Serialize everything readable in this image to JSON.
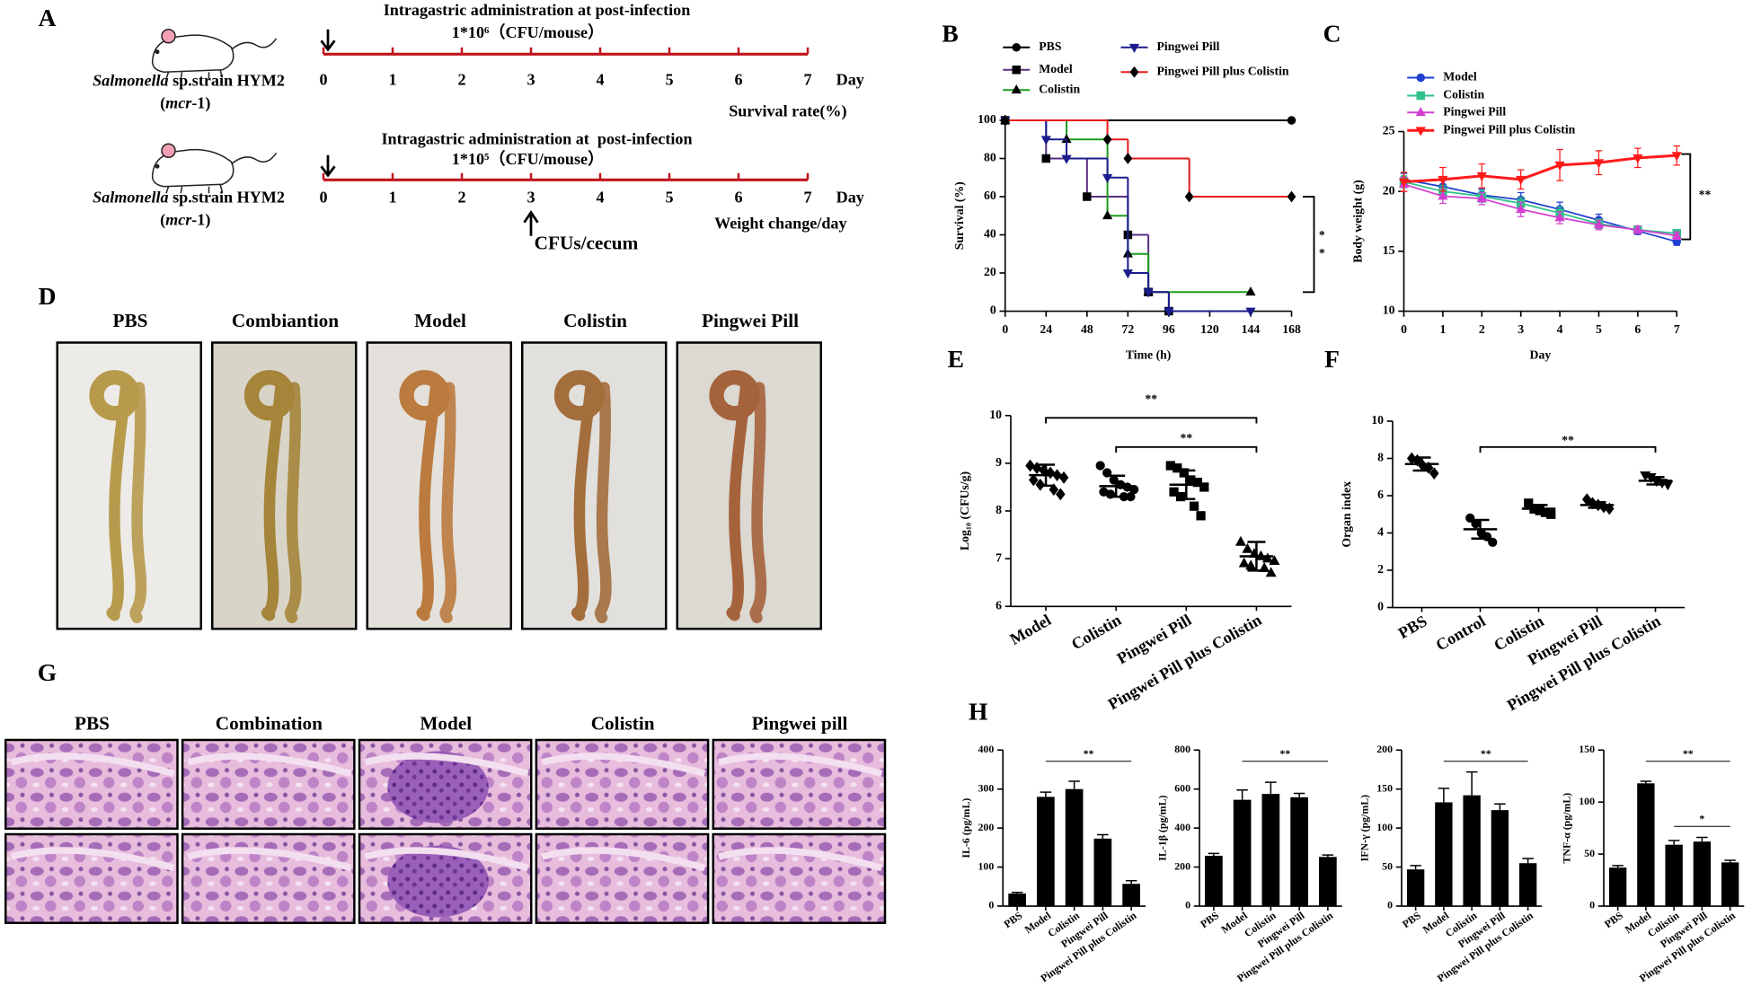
{
  "panel_letters": [
    "A",
    "B",
    "C",
    "D",
    "E",
    "F",
    "G",
    "H"
  ],
  "timelines": [
    {
      "title": "Intragastric administration at post-infection",
      "dose": "1*10⁶（CFU/mouse）",
      "days": [
        0,
        1,
        2,
        3,
        4,
        5,
        6,
        7
      ],
      "unit": "Day",
      "readout": "Survival rate(%)",
      "strain": [
        "Salmonella",
        " sp.strain HYM2"
      ],
      "gene": [
        "(",
        "mcr",
        "-1)"
      ]
    },
    {
      "title": "Intragastric administration at  post-infection",
      "dose": "1*10⁵（CFU/mouse）",
      "days": [
        0,
        1,
        2,
        3,
        4,
        5,
        6,
        7
      ],
      "unit": "Day",
      "readout": "Weight change/day",
      "strain": [
        "Salmonella",
        " sp.strain HYM2"
      ],
      "gene": [
        "(",
        "mcr",
        "-1)"
      ],
      "sample": "CFUs/cecum"
    }
  ],
  "photos": {
    "labels": [
      "PBS",
      "Combiantion",
      "Model",
      "Colistin",
      "Pingwei Pill"
    ]
  },
  "histology": {
    "labels": [
      "PBS",
      "Combination",
      "Model",
      "Colistin",
      "Pingwei pill"
    ]
  },
  "chart_data": [
    {
      "type": "line",
      "step": true,
      "xlabel": "Time (h)",
      "ylabel": "Survival (%)",
      "xlim": [
        0,
        168
      ],
      "xticks": [
        0,
        24,
        48,
        72,
        96,
        120,
        144,
        168
      ],
      "ylim": [
        0,
        100
      ],
      "yticks": [
        0,
        20,
        40,
        60,
        80,
        100
      ],
      "annotations": [
        "*",
        "*"
      ],
      "series": [
        {
          "name": "PBS",
          "color": "#000000",
          "marker": "circle",
          "marker_color": "#000000",
          "x": [
            0,
            168
          ],
          "values": [
            100,
            100
          ]
        },
        {
          "name": "Model",
          "color": "#5a2d82",
          "marker": "square",
          "marker_color": "#000000",
          "x": [
            0,
            24,
            48,
            72,
            84,
            96
          ],
          "values": [
            100,
            80,
            60,
            40,
            10,
            0
          ]
        },
        {
          "name": "Colistin",
          "color": "#1a9e1a",
          "marker": "triangle",
          "marker_color": "#000000",
          "x": [
            0,
            36,
            60,
            72,
            84,
            144
          ],
          "values": [
            100,
            90,
            50,
            30,
            10,
            10
          ]
        },
        {
          "name": "Pingwei Pill",
          "color": "#1c1c8e",
          "marker": "triangle-down",
          "marker_color": "#1c1c8e",
          "x": [
            0,
            24,
            36,
            60,
            72,
            84,
            96,
            144
          ],
          "values": [
            100,
            90,
            80,
            70,
            20,
            10,
            0,
            0
          ]
        },
        {
          "name": "Pingwei Pill plus Colistin",
          "color": "#e8191b",
          "marker": "diamond",
          "marker_color": "#000000",
          "x": [
            0,
            60,
            72,
            108,
            168
          ],
          "values": [
            100,
            90,
            80,
            60,
            60
          ]
        }
      ]
    },
    {
      "type": "line",
      "xlabel": "Day",
      "ylabel": "Body weight (g)",
      "xlim": [
        0,
        7
      ],
      "xticks": [
        0,
        1,
        2,
        3,
        4,
        5,
        6,
        7
      ],
      "ylim": [
        10,
        25
      ],
      "yticks": [
        10,
        15,
        20,
        25
      ],
      "annotations": [
        "**"
      ],
      "series": [
        {
          "name": "Model",
          "color": "#1f3fcf",
          "marker": "circle",
          "marker_color": "#1f3fcf",
          "x": [
            0,
            1,
            2,
            3,
            4,
            5,
            6,
            7
          ],
          "values": [
            21.0,
            20.4,
            19.7,
            19.3,
            18.5,
            17.6,
            16.7,
            15.8
          ],
          "errors": [
            0.5,
            0.5,
            0.5,
            0.6,
            0.6,
            0.5,
            0.3,
            0.3
          ]
        },
        {
          "name": "Colistin",
          "color": "#2ec28a",
          "marker": "square",
          "marker_color": "#2ec28a",
          "x": [
            0,
            1,
            2,
            3,
            4,
            5,
            6,
            7
          ],
          "values": [
            20.8,
            20.0,
            19.6,
            19.0,
            18.2,
            17.3,
            16.8,
            16.5
          ],
          "errors": [
            0.5,
            0.5,
            0.5,
            0.5,
            0.5,
            0.4,
            0.3,
            0.3
          ]
        },
        {
          "name": "Pingwei Pill",
          "color": "#d13fd1",
          "marker": "triangle",
          "marker_color": "#d13fd1",
          "x": [
            0,
            1,
            2,
            3,
            4,
            5,
            6,
            7
          ],
          "values": [
            20.6,
            19.6,
            19.4,
            18.5,
            17.8,
            17.2,
            16.8,
            16.3
          ],
          "errors": [
            0.6,
            0.6,
            0.5,
            0.6,
            0.5,
            0.4,
            0.3,
            0.3
          ]
        },
        {
          "name": "Pingwei Pill plus Colistin",
          "color": "#ff1a1a",
          "marker": "triangle-down",
          "marker_color": "#ff1a1a",
          "x": [
            0,
            1,
            2,
            3,
            4,
            5,
            6,
            7
          ],
          "values": [
            20.8,
            21.0,
            21.3,
            21.0,
            22.2,
            22.4,
            22.8,
            23.0
          ],
          "errors": [
            0.8,
            1.0,
            1.0,
            0.8,
            1.3,
            1.0,
            0.8,
            0.8
          ]
        }
      ]
    },
    {
      "type": "scatter",
      "ylabel": "Log₁₀ (CFUs/g)",
      "categories": [
        "Model",
        "Colistin",
        "Pingwei Pill",
        "Pingwei Pill plus Colistin"
      ],
      "ylim": [
        6,
        10
      ],
      "yticks": [
        6,
        7,
        8,
        9,
        10
      ],
      "annotations": [
        "**",
        "**"
      ],
      "markers": [
        "diamond",
        "circle",
        "square",
        "triangle"
      ],
      "points": [
        [
          8.95,
          8.9,
          8.85,
          8.8,
          8.75,
          8.7,
          8.65,
          8.55,
          8.45,
          8.35
        ],
        [
          8.95,
          8.8,
          8.65,
          8.55,
          8.5,
          8.45,
          8.4,
          8.35,
          8.3,
          8.3
        ],
        [
          8.95,
          8.9,
          8.8,
          8.65,
          8.6,
          8.5,
          8.4,
          8.3,
          8.1,
          7.9
        ],
        [
          7.35,
          7.2,
          7.1,
          7.05,
          7.0,
          6.95,
          6.9,
          6.85,
          6.8,
          6.7
        ]
      ],
      "means": [
        8.75,
        8.52,
        8.55,
        7.05
      ],
      "errors": [
        0.22,
        0.22,
        0.3,
        0.3
      ]
    },
    {
      "type": "scatter",
      "ylabel": "Organ index",
      "categories": [
        "PBS",
        "Control",
        "Colistin",
        "Pingwei Pill",
        "Pingwei Pill plus Colistin"
      ],
      "ylim": [
        0,
        10
      ],
      "yticks": [
        0,
        2,
        4,
        6,
        8,
        10
      ],
      "annotations": [
        "**"
      ],
      "markers": [
        "diamond",
        "circle",
        "square",
        "diamond",
        "triangle-down"
      ],
      "points": [
        [
          8.0,
          7.9,
          7.6,
          7.5,
          7.2
        ],
        [
          4.8,
          4.5,
          4.0,
          3.8,
          3.5
        ],
        [
          5.6,
          5.3,
          5.2,
          5.1,
          5.0
        ],
        [
          5.8,
          5.6,
          5.5,
          5.4,
          5.3
        ],
        [
          7.1,
          7.0,
          6.8,
          6.7,
          6.6
        ]
      ],
      "means": [
        7.7,
        4.2,
        5.3,
        5.5,
        6.8
      ],
      "errors": [
        0.35,
        0.5,
        0.2,
        0.15,
        0.2
      ]
    },
    {
      "type": "bar",
      "ylabel": "IL-6 (pg/mL)",
      "categories": [
        "PBS",
        "Model",
        "Colistin",
        "Pingwei Pill",
        "Pingwei Pill plus Colistin"
      ],
      "values": [
        32,
        280,
        300,
        173,
        57
      ],
      "errors": [
        3,
        12,
        20,
        10,
        8
      ],
      "color": "#000000",
      "ylim": [
        0,
        400
      ],
      "yticks": [
        0,
        100,
        200,
        300,
        400
      ],
      "annotations": [
        "**"
      ]
    },
    {
      "type": "bar",
      "ylabel": "IL-1β (pg/mL)",
      "categories": [
        "PBS",
        "Model",
        "Colistin",
        "Pingwei Pill",
        "Pingwei Pill plus Colistin"
      ],
      "values": [
        258,
        545,
        575,
        558,
        252
      ],
      "errors": [
        12,
        50,
        60,
        20,
        10
      ],
      "color": "#000000",
      "ylim": [
        0,
        800
      ],
      "yticks": [
        0,
        200,
        400,
        600,
        800
      ],
      "annotations": [
        "**"
      ]
    },
    {
      "type": "bar",
      "ylabel": "IFN-γ (pg/mL)",
      "categories": [
        "PBS",
        "Model",
        "Colistin",
        "Pingwei Pill",
        "Pingwei Pill plus Colistin"
      ],
      "values": [
        47,
        133,
        142,
        123,
        55
      ],
      "errors": [
        5,
        18,
        30,
        8,
        6
      ],
      "color": "#000000",
      "ylim": [
        0,
        200
      ],
      "yticks": [
        0,
        50,
        100,
        150,
        200
      ],
      "annotations": [
        "**"
      ]
    },
    {
      "type": "bar",
      "ylabel": "TNF-α (pg/mL)",
      "categories": [
        "PBS",
        "Model",
        "Colistin",
        "Pingwei Pill",
        "Pingwei Pill plus Colistin"
      ],
      "values": [
        37,
        118,
        59,
        62,
        42
      ],
      "errors": [
        2,
        2,
        4,
        4,
        2
      ],
      "color": "#000000",
      "ylim": [
        0,
        150
      ],
      "yticks": [
        0,
        50,
        100,
        150
      ],
      "annotations": [
        "**",
        "*"
      ]
    }
  ]
}
